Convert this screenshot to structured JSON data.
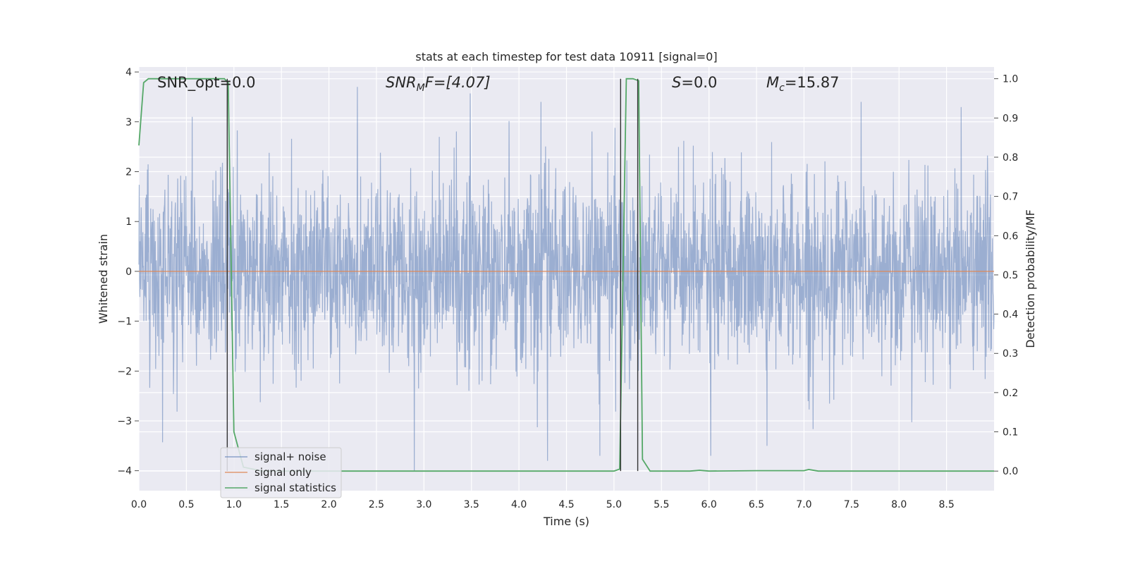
{
  "chart_data": {
    "type": "line",
    "title": "stats at each timestep for test data 10911 [signal=0]",
    "xlabel": "Time (s)",
    "ylabel": "Whitened strain",
    "y2label": "Detection probability/MF",
    "xlim": [
      0.0,
      9.0
    ],
    "ylim": [
      -4.4,
      4.1
    ],
    "y2lim": [
      -0.05,
      1.03
    ],
    "xticks": [
      0.0,
      0.5,
      1.0,
      1.5,
      2.0,
      2.5,
      3.0,
      3.5,
      4.0,
      4.5,
      5.0,
      5.5,
      6.0,
      6.5,
      7.0,
      7.5,
      8.0,
      8.5
    ],
    "xtick_labels": [
      "0.0",
      "0.5",
      "1.0",
      "1.5",
      "2.0",
      "2.5",
      "3.0",
      "3.5",
      "4.0",
      "4.5",
      "5.0",
      "5.5",
      "6.0",
      "6.5",
      "7.0",
      "7.5",
      "8.0",
      "8.5"
    ],
    "yticks": [
      -4,
      -3,
      -2,
      -1,
      0,
      1,
      2,
      3,
      4
    ],
    "ytick_labels": [
      "−4",
      "−3",
      "−2",
      "−1",
      "0",
      "1",
      "2",
      "3",
      "4"
    ],
    "y2ticks": [
      0.0,
      0.1,
      0.2,
      0.3,
      0.4,
      0.5,
      0.6,
      0.7,
      0.8,
      0.9,
      1.0
    ],
    "y2tick_labels": [
      "0.0",
      "0.1",
      "0.2",
      "0.3",
      "0.4",
      "0.5",
      "0.6",
      "0.7",
      "0.8",
      "0.9",
      "1.0"
    ],
    "grid": true,
    "legend_position": "lower-left",
    "annotations": {
      "snr_opt": "SNR_opt=0.0",
      "snr_mf_main": "SNR",
      "snr_mf_sub": "M",
      "snr_mf_tail": "F=[4.07]",
      "s_main": "S",
      "s_tail": "=0.0",
      "mc_main": "M",
      "mc_sub": "c",
      "mc_tail": "=15.87"
    },
    "series": [
      {
        "name": "signal+ noise",
        "color": "#4c72b0",
        "style": "noise band, amplitude roughly ±1.5 typical with spikes to about ±3.7",
        "typical_amplitude": 1.5,
        "peak_amplitude": 3.7,
        "notable_peaks": [
          [
            0.56,
            3.1
          ],
          [
            2.3,
            3.7
          ],
          [
            4.23,
            3.4
          ],
          [
            7.6,
            3.4
          ],
          [
            2.9,
            -4.0
          ],
          [
            4.3,
            -3.8
          ],
          [
            4.85,
            -3.7
          ],
          [
            6.02,
            -3.7
          ],
          [
            6.61,
            -3.5
          ]
        ]
      },
      {
        "name": "signal only",
        "color": "#dd8452",
        "x": [
          0.0,
          9.0
        ],
        "y": [
          0.0,
          0.0
        ]
      },
      {
        "name": "signal statistics",
        "color": "#55a868",
        "axis": "right",
        "x": [
          0.0,
          0.05,
          0.1,
          0.2,
          0.4,
          0.6,
          0.8,
          0.9,
          0.94,
          1.0,
          1.1,
          1.3,
          1.5,
          2.0,
          3.0,
          4.0,
          5.0,
          5.06,
          5.13,
          5.2,
          5.26,
          5.3,
          5.38,
          5.5,
          5.8,
          5.9,
          6.0,
          6.5,
          7.0,
          7.05,
          7.15,
          7.5,
          8.0,
          8.5,
          9.0
        ],
        "y": [
          0.83,
          0.99,
          1.0,
          1.0,
          1.0,
          1.0,
          1.0,
          1.0,
          0.99,
          0.1,
          0.01,
          0.0,
          0.0,
          0.0,
          0.0,
          0.0,
          0.0,
          0.005,
          1.0,
          1.0,
          0.995,
          0.03,
          0.0,
          0.0,
          0.0,
          0.002,
          0.0,
          0.001,
          0.001,
          0.004,
          0.0,
          0.0,
          0.0,
          0.0,
          0.0
        ]
      }
    ],
    "vertical_markers": [
      {
        "x": 0.93,
        "from": 0.0,
        "to": 1.0,
        "color": "#333333"
      },
      {
        "x": 5.07,
        "from": 0.0,
        "to": 1.0,
        "color": "#333333"
      },
      {
        "x": 5.25,
        "from": 0.0,
        "to": 1.0,
        "color": "#333333"
      }
    ]
  }
}
